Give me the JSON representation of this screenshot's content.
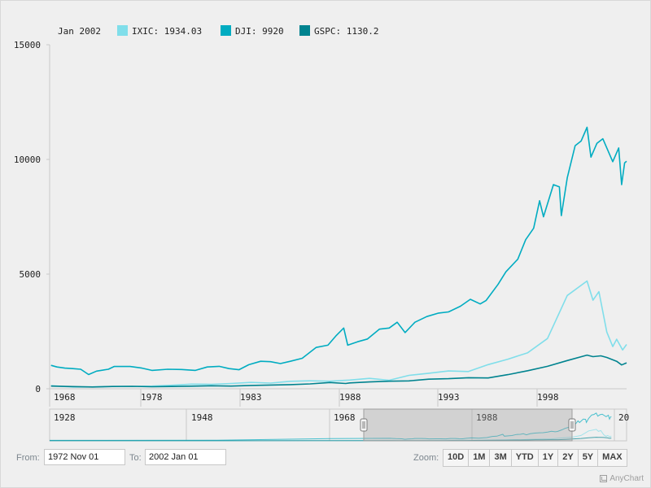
{
  "legend": {
    "date": "Jan 2002",
    "items": [
      {
        "label": "IXIC: 1934.03",
        "color": "#80deea"
      },
      {
        "label": "DJI: 9920",
        "color": "#00acc1"
      },
      {
        "label": "GSPC: 1130.2",
        "color": "#00838f"
      }
    ]
  },
  "controls": {
    "from_label": "From:",
    "from_value": "1972 Nov 01",
    "to_label": "To:",
    "to_value": "2002 Jan 01",
    "zoom_label": "Zoom:",
    "zoom_buttons": [
      "10D",
      "1M",
      "3M",
      "YTD",
      "1Y",
      "2Y",
      "5Y",
      "MAX"
    ]
  },
  "credit": "AnyChart",
  "chart_data": {
    "type": "line",
    "x_range": [
      "1972-11",
      "2002-01"
    ],
    "ylim": [
      0,
      15000
    ],
    "y_ticks": [
      "0",
      "5000",
      "10000",
      "15000"
    ],
    "x_ticks": [
      "1968",
      "1978",
      "1983",
      "1988",
      "1993",
      "1998"
    ],
    "series": [
      {
        "name": "IXIC",
        "color": "#80deea",
        "points": [
          [
            1972.9,
            133
          ],
          [
            1974,
            78
          ],
          [
            1975,
            80
          ],
          [
            1976,
            98
          ],
          [
            1977,
            105
          ],
          [
            1978,
            117
          ],
          [
            1979,
            151
          ],
          [
            1980,
            202
          ],
          [
            1981,
            195
          ],
          [
            1982,
            232
          ],
          [
            1983,
            278
          ],
          [
            1984,
            247
          ],
          [
            1985,
            325
          ],
          [
            1986,
            349
          ],
          [
            1987,
            330
          ],
          [
            1988,
            381
          ],
          [
            1989,
            454
          ],
          [
            1990,
            373
          ],
          [
            1991,
            586
          ],
          [
            1992,
            677
          ],
          [
            1993,
            777
          ],
          [
            1994,
            751
          ],
          [
            1995,
            1052
          ],
          [
            1996,
            1291
          ],
          [
            1997,
            1570
          ],
          [
            1998,
            2193
          ],
          [
            1999,
            4069
          ],
          [
            2000,
            4697
          ],
          [
            2000.3,
            3860
          ],
          [
            2000.6,
            4234
          ],
          [
            2001,
            2470
          ],
          [
            2001.3,
            1840
          ],
          [
            2001.5,
            2160
          ],
          [
            2001.8,
            1690
          ],
          [
            2002,
            1934
          ]
        ]
      },
      {
        "name": "DJI",
        "color": "#00acc1",
        "points": [
          [
            1972.9,
            1020
          ],
          [
            1973.2,
            950
          ],
          [
            1973.6,
            900
          ],
          [
            1974,
            880
          ],
          [
            1974.4,
            850
          ],
          [
            1974.8,
            620
          ],
          [
            1975.2,
            770
          ],
          [
            1975.8,
            850
          ],
          [
            1976.1,
            975
          ],
          [
            1976.9,
            970
          ],
          [
            1977.5,
            900
          ],
          [
            1978,
            800
          ],
          [
            1978.8,
            850
          ],
          [
            1979.5,
            840
          ],
          [
            1980.2,
            800
          ],
          [
            1980.8,
            950
          ],
          [
            1981.4,
            980
          ],
          [
            1981.9,
            880
          ],
          [
            1982.4,
            830
          ],
          [
            1982.9,
            1050
          ],
          [
            1983.5,
            1200
          ],
          [
            1984,
            1180
          ],
          [
            1984.5,
            1100
          ],
          [
            1985,
            1200
          ],
          [
            1985.6,
            1330
          ],
          [
            1986.3,
            1800
          ],
          [
            1986.9,
            1900
          ],
          [
            1987.3,
            2300
          ],
          [
            1987.7,
            2650
          ],
          [
            1987.9,
            1900
          ],
          [
            1988.4,
            2050
          ],
          [
            1988.9,
            2170
          ],
          [
            1989.5,
            2600
          ],
          [
            1990,
            2650
          ],
          [
            1990.4,
            2900
          ],
          [
            1990.8,
            2450
          ],
          [
            1991.3,
            2900
          ],
          [
            1991.9,
            3150
          ],
          [
            1992.5,
            3300
          ],
          [
            1993,
            3350
          ],
          [
            1993.6,
            3600
          ],
          [
            1994.1,
            3900
          ],
          [
            1994.6,
            3700
          ],
          [
            1994.9,
            3850
          ],
          [
            1995.5,
            4550
          ],
          [
            1995.9,
            5100
          ],
          [
            1996.5,
            5650
          ],
          [
            1996.9,
            6500
          ],
          [
            1997.3,
            7000
          ],
          [
            1997.6,
            8200
          ],
          [
            1997.8,
            7500
          ],
          [
            1998.3,
            8900
          ],
          [
            1998.6,
            8800
          ],
          [
            1998.7,
            7550
          ],
          [
            1999,
            9200
          ],
          [
            1999.4,
            10600
          ],
          [
            1999.7,
            10800
          ],
          [
            2000,
            11400
          ],
          [
            2000.2,
            10100
          ],
          [
            2000.5,
            10700
          ],
          [
            2000.8,
            10900
          ],
          [
            2001,
            10500
          ],
          [
            2001.3,
            9900
          ],
          [
            2001.6,
            10500
          ],
          [
            2001.75,
            8900
          ],
          [
            2001.9,
            9850
          ],
          [
            2002,
            9920
          ]
        ]
      },
      {
        "name": "GSPC",
        "color": "#00838f",
        "points": [
          [
            1972.9,
            116
          ],
          [
            1974,
            97
          ],
          [
            1975,
            77
          ],
          [
            1976,
            100
          ],
          [
            1977,
            107
          ],
          [
            1978,
            89
          ],
          [
            1979,
            99
          ],
          [
            1980,
            114
          ],
          [
            1981,
            130
          ],
          [
            1982,
            118
          ],
          [
            1983,
            145
          ],
          [
            1984,
            163
          ],
          [
            1985,
            180
          ],
          [
            1986,
            211
          ],
          [
            1987,
            274
          ],
          [
            1987.8,
            230
          ],
          [
            1988,
            257
          ],
          [
            1989,
            297
          ],
          [
            1990,
            330
          ],
          [
            1991,
            343
          ],
          [
            1992,
            417
          ],
          [
            1993,
            438
          ],
          [
            1994,
            481
          ],
          [
            1995,
            470
          ],
          [
            1996,
            616
          ],
          [
            1997,
            786
          ],
          [
            1998,
            980
          ],
          [
            1999,
            1229
          ],
          [
            2000,
            1469
          ],
          [
            2000.3,
            1400
          ],
          [
            2000.7,
            1436
          ],
          [
            2001,
            1366
          ],
          [
            2001.5,
            1200
          ],
          [
            2001.75,
            1040
          ],
          [
            2002,
            1130
          ]
        ]
      }
    ],
    "navigator": {
      "labels": [
        "1928",
        "1948",
        "1968",
        "1988",
        "20"
      ]
    }
  }
}
